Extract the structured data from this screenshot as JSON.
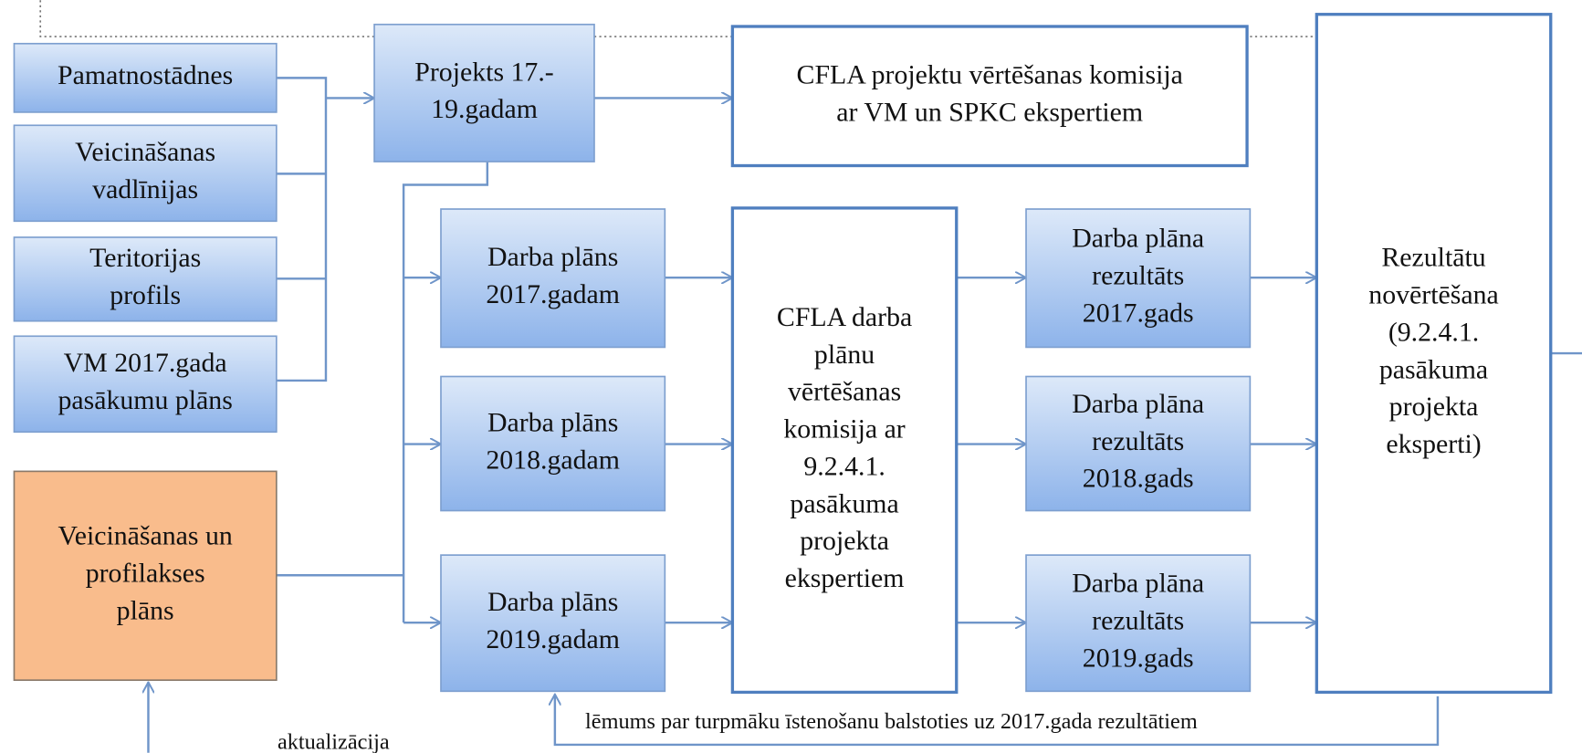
{
  "nodes": [
    {
      "lines": [
        "Pamatnostādnes"
      ]
    },
    {
      "lines": [
        "Veicināšanas",
        "vadlīnijas"
      ]
    },
    {
      "lines": [
        "Teritorijas",
        "profils"
      ]
    },
    {
      "lines": [
        "VM 2017.gada",
        "pasākumu plāns"
      ]
    },
    {
      "lines": [
        "Veicināšanas un",
        "profilakses",
        "plāns"
      ]
    },
    {
      "lines": [
        "Projekts 17.-",
        "19.gadam"
      ]
    },
    {
      "lines": [
        "CFLA projektu vērtēšanas komisija",
        "ar VM un SPKC ekspertiem"
      ]
    },
    {
      "lines": [
        "Darba plāns",
        "2017.gadam"
      ]
    },
    {
      "lines": [
        "Darba plāns",
        "2018.gadam"
      ]
    },
    {
      "lines": [
        "Darba plāns",
        "2019.gadam"
      ]
    },
    {
      "lines": [
        "CFLA darba",
        "plānu",
        "vērtēšanas",
        "komisija  ar",
        "9.2.4.1.",
        "pasākuma",
        "projekta",
        "ekspertiem"
      ]
    },
    {
      "lines": [
        "Darba plāna",
        "rezultāts",
        "2017.gads"
      ]
    },
    {
      "lines": [
        "Darba plāna",
        "rezultāts",
        "2018.gads"
      ]
    },
    {
      "lines": [
        "Darba plāna",
        "rezultāts",
        "2019.gads"
      ]
    },
    {
      "lines": [
        "Rezultātu",
        "novērtēšana",
        "(9.2.4.1.",
        "pasākuma",
        "projekta",
        "eksperti)"
      ]
    }
  ],
  "labels": {
    "feedback": "lēmums par turpmāku īstenošanu balstoties uz 2017.gada rezultātiem",
    "update": "aktualizācija"
  }
}
